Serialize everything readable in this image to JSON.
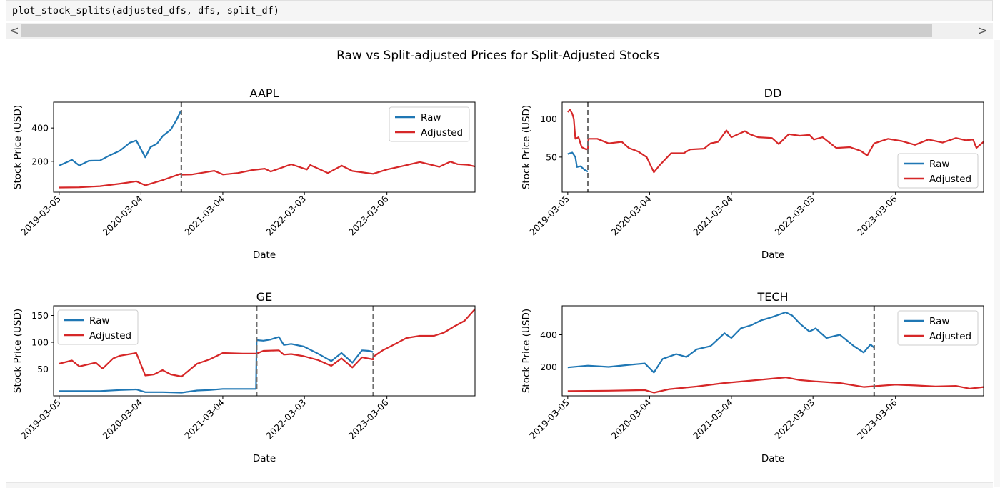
{
  "cell": {
    "code": "plot_stock_splits(adjusted_dfs, dfs, split_df)"
  },
  "scrollbar": {
    "left_arrow": "<",
    "right_arrow": ">"
  },
  "figure": {
    "suptitle": "Raw vs Split-adjusted Prices for Split-Adjusted Stocks"
  },
  "colors": {
    "raw": "#1f77b4",
    "adjusted": "#d62728",
    "split_line": "#6e6e6e"
  },
  "chart_data": [
    {
      "type": "line",
      "title": "AAPL",
      "xlabel": "Date",
      "ylabel": "Stock Price (USD)",
      "xlim": [
        "2019-02-08",
        "2024-04-02"
      ],
      "ylim": [
        15,
        555
      ],
      "yticks": [
        200,
        400
      ],
      "xticks": [
        "2019-03-05",
        "2020-03-04",
        "2021-03-04",
        "2022-03-03",
        "2023-03-06"
      ],
      "legend": "top-right",
      "splits": [
        "2020-08-31"
      ],
      "series": [
        {
          "name": "Raw",
          "points": [
            [
              "2019-03-05",
              174
            ],
            [
              "2019-05-01",
              209
            ],
            [
              "2019-06-03",
              175
            ],
            [
              "2019-07-15",
              203
            ],
            [
              "2019-09-03",
              205
            ],
            [
              "2019-10-15",
              235
            ],
            [
              "2019-12-02",
              265
            ],
            [
              "2020-01-15",
              312
            ],
            [
              "2020-02-12",
              325
            ],
            [
              "2020-03-23",
              224
            ],
            [
              "2020-04-15",
              285
            ],
            [
              "2020-05-15",
              307
            ],
            [
              "2020-06-10",
              353
            ],
            [
              "2020-07-15",
              390
            ],
            [
              "2020-08-10",
              450
            ],
            [
              "2020-08-28",
              500
            ]
          ]
        },
        {
          "name": "Adjusted",
          "points": [
            [
              "2019-03-05",
              43
            ],
            [
              "2019-06-03",
              44
            ],
            [
              "2019-09-03",
              51
            ],
            [
              "2019-12-02",
              66
            ],
            [
              "2020-02-12",
              80
            ],
            [
              "2020-03-23",
              56
            ],
            [
              "2020-06-10",
              88
            ],
            [
              "2020-08-28",
              125
            ],
            [
              "2020-09-04",
              120
            ],
            [
              "2020-10-15",
              121
            ],
            [
              "2021-01-25",
              143
            ],
            [
              "2021-03-05",
              121
            ],
            [
              "2021-05-10",
              130
            ],
            [
              "2021-07-15",
              148
            ],
            [
              "2021-09-07",
              156
            ],
            [
              "2021-10-04",
              139
            ],
            [
              "2022-01-03",
              182
            ],
            [
              "2022-03-14",
              151
            ],
            [
              "2022-03-29",
              178
            ],
            [
              "2022-06-16",
              130
            ],
            [
              "2022-08-16",
              174
            ],
            [
              "2022-10-03",
              142
            ],
            [
              "2023-01-03",
              125
            ],
            [
              "2023-03-06",
              151
            ],
            [
              "2023-05-15",
              172
            ],
            [
              "2023-07-31",
              196
            ],
            [
              "2023-10-26",
              167
            ],
            [
              "2023-12-14",
              198
            ],
            [
              "2024-01-15",
              183
            ],
            [
              "2024-03-01",
              179
            ],
            [
              "2024-04-02",
              169
            ]
          ]
        }
      ]
    },
    {
      "type": "line",
      "title": "DD",
      "xlabel": "Date",
      "ylabel": "Stock Price (USD)",
      "xlim": [
        "2019-02-08",
        "2024-04-02"
      ],
      "ylim": [
        4,
        122
      ],
      "yticks": [
        50,
        100
      ],
      "xticks": [
        "2019-03-05",
        "2020-03-04",
        "2021-03-04",
        "2022-03-03",
        "2023-03-06"
      ],
      "legend": "bottom-right",
      "splits": [
        "2019-06-03"
      ],
      "series": [
        {
          "name": "Raw",
          "points": [
            [
              "2019-03-05",
              54
            ],
            [
              "2019-03-25",
              56
            ],
            [
              "2019-04-08",
              50
            ],
            [
              "2019-04-15",
              37
            ],
            [
              "2019-05-01",
              38
            ],
            [
              "2019-05-20",
              33
            ],
            [
              "2019-06-03",
              31
            ]
          ]
        },
        {
          "name": "Adjusted",
          "points": [
            [
              "2019-03-05",
              109
            ],
            [
              "2019-03-15",
              112
            ],
            [
              "2019-03-25",
              107
            ],
            [
              "2019-04-01",
              100
            ],
            [
              "2019-04-08",
              74
            ],
            [
              "2019-04-22",
              76
            ],
            [
              "2019-05-06",
              63
            ],
            [
              "2019-05-27",
              60
            ],
            [
              "2019-06-03",
              61
            ],
            [
              "2019-06-05",
              74
            ],
            [
              "2019-07-15",
              74
            ],
            [
              "2019-09-03",
              68
            ],
            [
              "2019-11-01",
              70
            ],
            [
              "2019-12-02",
              62
            ],
            [
              "2020-01-15",
              57
            ],
            [
              "2020-02-20",
              50
            ],
            [
              "2020-03-23",
              30
            ],
            [
              "2020-04-20",
              40
            ],
            [
              "2020-06-08",
              55
            ],
            [
              "2020-08-03",
              55
            ],
            [
              "2020-09-01",
              60
            ],
            [
              "2020-11-02",
              61
            ],
            [
              "2020-12-01",
              68
            ],
            [
              "2021-01-04",
              70
            ],
            [
              "2021-02-10",
              85
            ],
            [
              "2021-03-04",
              76
            ],
            [
              "2021-05-03",
              84
            ],
            [
              "2021-05-25",
              80
            ],
            [
              "2021-07-01",
              76
            ],
            [
              "2021-09-01",
              75
            ],
            [
              "2021-10-01",
              67
            ],
            [
              "2021-11-15",
              80
            ],
            [
              "2022-01-03",
              78
            ],
            [
              "2022-02-15",
              79
            ],
            [
              "2022-03-07",
              73
            ],
            [
              "2022-04-15",
              76
            ],
            [
              "2022-06-15",
              62
            ],
            [
              "2022-08-15",
              63
            ],
            [
              "2022-10-03",
              58
            ],
            [
              "2022-10-31",
              52
            ],
            [
              "2022-12-01",
              68
            ],
            [
              "2023-02-01",
              74
            ],
            [
              "2023-04-03",
              71
            ],
            [
              "2023-06-01",
              66
            ],
            [
              "2023-07-31",
              73
            ],
            [
              "2023-10-02",
              69
            ],
            [
              "2023-12-01",
              75
            ],
            [
              "2024-01-15",
              72
            ],
            [
              "2024-02-15",
              73
            ],
            [
              "2024-03-01",
              62
            ],
            [
              "2024-04-02",
              70
            ]
          ]
        }
      ]
    },
    {
      "type": "line",
      "title": "GE",
      "xlabel": "Date",
      "ylabel": "Stock Price (USD)",
      "xlim": [
        "2019-02-08",
        "2024-04-02"
      ],
      "ylim": [
        0,
        168
      ],
      "yticks": [
        50,
        100,
        150
      ],
      "xticks": [
        "2019-03-05",
        "2020-03-04",
        "2021-03-04",
        "2022-03-03",
        "2023-03-06"
      ],
      "legend": "top-left",
      "splits": [
        "2021-08-02",
        "2023-01-04"
      ],
      "series": [
        {
          "name": "Raw",
          "points": [
            [
              "2019-03-05",
              9
            ],
            [
              "2019-06-03",
              9
            ],
            [
              "2019-09-03",
              9
            ],
            [
              "2019-12-02",
              11
            ],
            [
              "2020-02-12",
              12
            ],
            [
              "2020-03-23",
              7
            ],
            [
              "2020-06-08",
              7
            ],
            [
              "2020-09-01",
              6
            ],
            [
              "2020-11-09",
              10
            ],
            [
              "2021-01-04",
              11
            ],
            [
              "2021-03-04",
              13
            ],
            [
              "2021-06-01",
              13
            ],
            [
              "2021-07-30",
              13
            ],
            [
              "2021-08-02",
              104
            ],
            [
              "2021-09-01",
              103
            ],
            [
              "2021-10-01",
              105
            ],
            [
              "2021-11-09",
              110
            ],
            [
              "2021-12-01",
              95
            ],
            [
              "2022-01-03",
              97
            ],
            [
              "2022-03-01",
              92
            ],
            [
              "2022-05-02",
              79
            ],
            [
              "2022-07-01",
              65
            ],
            [
              "2022-08-15",
              80
            ],
            [
              "2022-10-03",
              62
            ],
            [
              "2022-11-15",
              85
            ],
            [
              "2022-12-15",
              84
            ],
            [
              "2023-01-03",
              82
            ]
          ]
        },
        {
          "name": "Adjusted",
          "points": [
            [
              "2019-03-05",
              60
            ],
            [
              "2019-05-01",
              66
            ],
            [
              "2019-06-03",
              55
            ],
            [
              "2019-08-15",
              62
            ],
            [
              "2019-09-15",
              51
            ],
            [
              "2019-11-01",
              70
            ],
            [
              "2019-12-02",
              75
            ],
            [
              "2020-02-12",
              80
            ],
            [
              "2020-03-23",
              38
            ],
            [
              "2020-05-01",
              40
            ],
            [
              "2020-06-08",
              48
            ],
            [
              "2020-07-15",
              40
            ],
            [
              "2020-09-01",
              36
            ],
            [
              "2020-11-09",
              60
            ],
            [
              "2021-01-04",
              68
            ],
            [
              "2021-03-04",
              80
            ],
            [
              "2021-06-01",
              79
            ],
            [
              "2021-08-02",
              79
            ],
            [
              "2021-09-01",
              84
            ],
            [
              "2021-11-09",
              85
            ],
            [
              "2021-12-01",
              77
            ],
            [
              "2022-01-03",
              78
            ],
            [
              "2022-03-01",
              74
            ],
            [
              "2022-05-02",
              67
            ],
            [
              "2022-07-01",
              56
            ],
            [
              "2022-08-15",
              70
            ],
            [
              "2022-10-03",
              53
            ],
            [
              "2022-11-15",
              72
            ],
            [
              "2023-01-03",
              68
            ],
            [
              "2023-01-04",
              73
            ],
            [
              "2023-02-15",
              85
            ],
            [
              "2023-04-03",
              95
            ],
            [
              "2023-06-01",
              108
            ],
            [
              "2023-07-31",
              112
            ],
            [
              "2023-10-02",
              112
            ],
            [
              "2023-11-15",
              118
            ],
            [
              "2024-01-02",
              130
            ],
            [
              "2024-02-15",
              140
            ],
            [
              "2024-04-02",
              162
            ]
          ]
        }
      ]
    },
    {
      "type": "line",
      "title": "TECH",
      "xlabel": "Date",
      "ylabel": "Stock Price (USD)",
      "xlim": [
        "2019-02-08",
        "2024-04-02"
      ],
      "ylim": [
        20,
        580
      ],
      "yticks": [
        200,
        400
      ],
      "xticks": [
        "2019-03-05",
        "2020-03-04",
        "2021-03-04",
        "2022-03-03",
        "2023-03-06"
      ],
      "legend": "top-right",
      "splits": [
        "2022-12-01"
      ],
      "series": [
        {
          "name": "Raw",
          "points": [
            [
              "2019-03-05",
              197
            ],
            [
              "2019-06-03",
              208
            ],
            [
              "2019-09-03",
              200
            ],
            [
              "2019-12-02",
              213
            ],
            [
              "2020-02-12",
              222
            ],
            [
              "2020-03-23",
              165
            ],
            [
              "2020-05-01",
              250
            ],
            [
              "2020-07-01",
              280
            ],
            [
              "2020-08-15",
              262
            ],
            [
              "2020-10-01",
              310
            ],
            [
              "2020-12-01",
              330
            ],
            [
              "2021-02-01",
              410
            ],
            [
              "2021-03-04",
              380
            ],
            [
              "2021-04-15",
              440
            ],
            [
              "2021-06-01",
              460
            ],
            [
              "2021-07-15",
              490
            ],
            [
              "2021-09-01",
              510
            ],
            [
              "2021-11-01",
              540
            ],
            [
              "2021-11-30",
              520
            ],
            [
              "2022-01-03",
              470
            ],
            [
              "2022-02-15",
              420
            ],
            [
              "2022-03-15",
              440
            ],
            [
              "2022-05-02",
              380
            ],
            [
              "2022-07-01",
              400
            ],
            [
              "2022-09-01",
              330
            ],
            [
              "2022-10-15",
              290
            ],
            [
              "2022-11-15",
              340
            ],
            [
              "2022-11-30",
              320
            ]
          ]
        },
        {
          "name": "Adjusted",
          "points": [
            [
              "2019-03-05",
              50
            ],
            [
              "2019-09-03",
              52
            ],
            [
              "2020-02-12",
              56
            ],
            [
              "2020-03-23",
              40
            ],
            [
              "2020-06-01",
              62
            ],
            [
              "2020-10-01",
              78
            ],
            [
              "2021-02-01",
              100
            ],
            [
              "2021-06-01",
              115
            ],
            [
              "2021-11-01",
              135
            ],
            [
              "2022-01-03",
              118
            ],
            [
              "2022-03-15",
              110
            ],
            [
              "2022-07-01",
              100
            ],
            [
              "2022-10-15",
              75
            ],
            [
              "2022-12-01",
              80
            ],
            [
              "2023-03-06",
              90
            ],
            [
              "2023-06-01",
              85
            ],
            [
              "2023-09-01",
              78
            ],
            [
              "2023-12-01",
              82
            ],
            [
              "2024-02-01",
              65
            ],
            [
              "2024-04-02",
              75
            ]
          ]
        }
      ]
    }
  ]
}
